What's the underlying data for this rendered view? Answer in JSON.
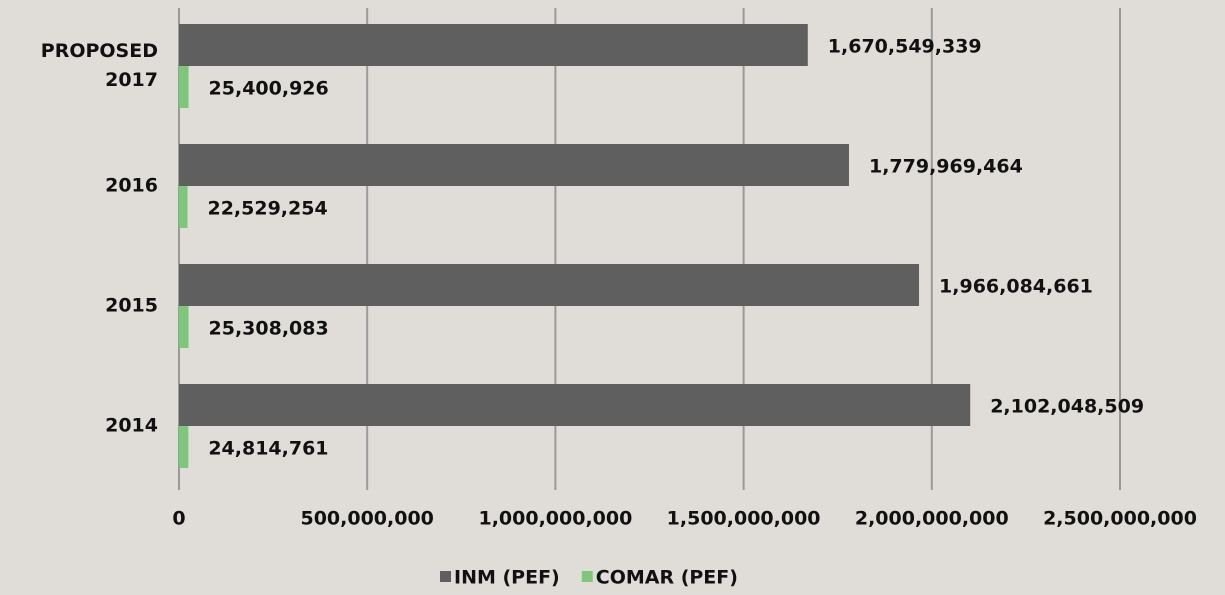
{
  "chart_data": {
    "type": "barh",
    "categories": [
      "PROPOSED 2017",
      "2016",
      "2015",
      "2014"
    ],
    "series": [
      {
        "name": "INM (PEF)",
        "color": "#5f5f5f",
        "values": [
          1670549339,
          1779969464,
          1966084661,
          2102048509
        ],
        "value_labels": [
          "1,670,549,339",
          "1,779,969,464",
          "1,966,084,661",
          "2,102,048,509"
        ]
      },
      {
        "name": "COMAR (PEF)",
        "color": "#7bc87b",
        "values": [
          25400926,
          22529254,
          25308083,
          24814761
        ],
        "value_labels": [
          "25,400,926",
          "22,529,254",
          "25,308,083",
          "24,814,761"
        ]
      }
    ],
    "xlim": [
      0,
      2500000000
    ],
    "xticks": [
      0,
      {
        "value": 500000000,
        "label": "500,000,000"
      },
      {
        "value": 1000000000,
        "label": "1,000,000,000"
      },
      {
        "value": 1500000000,
        "label": "1,500,000,000"
      },
      {
        "value": 2000000000,
        "label": "2,000,000,000"
      },
      {
        "value": 2500000000,
        "label": "2,500,000,000"
      }
    ],
    "grid": true,
    "legend": "bottom"
  }
}
